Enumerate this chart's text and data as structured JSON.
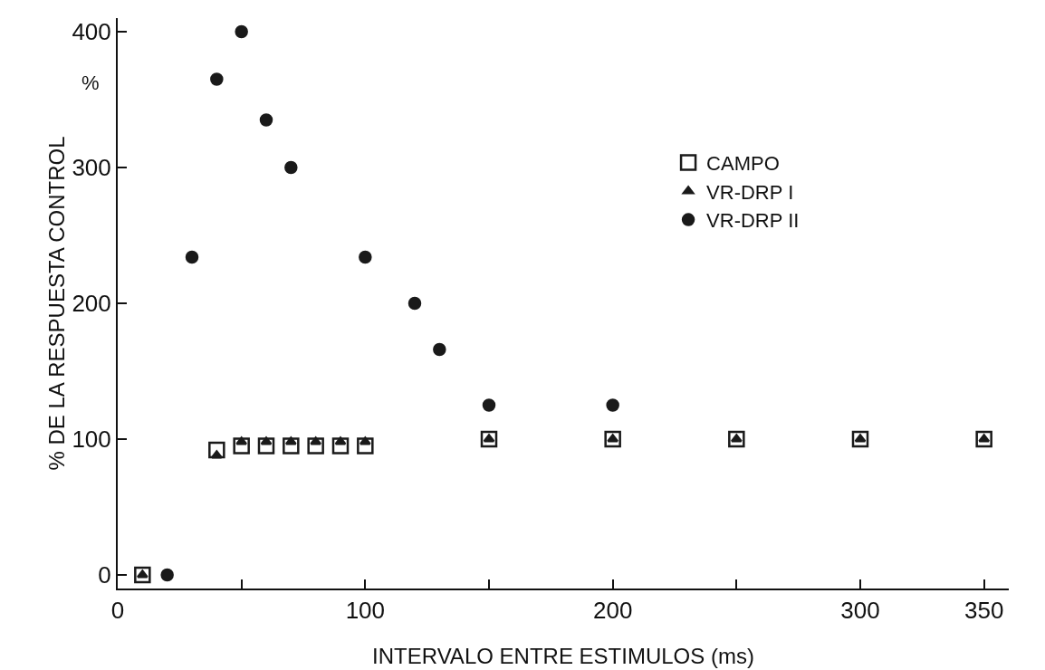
{
  "chart_data": {
    "type": "scatter",
    "xlabel": "INTERVALO ENTRE ESTIMULOS (ms)",
    "ylabel": "% DE LA RESPUESTA CONTROL",
    "annotations": [
      "%"
    ],
    "series": [
      {
        "name": "CAMPO",
        "color": "#1a1a1a",
        "marker": "square",
        "x": [
          10,
          40,
          50,
          60,
          70,
          80,
          90,
          100,
          150,
          200,
          250,
          300,
          350
        ],
        "values": [
          0,
          92,
          95,
          95,
          95,
          95,
          95,
          95,
          100,
          100,
          100,
          100,
          100
        ]
      },
      {
        "name": "VR-DRP I",
        "color": "#1a1a1a",
        "marker": "triangle",
        "x": [
          10,
          40,
          50,
          60,
          70,
          80,
          90,
          100,
          150,
          200,
          250,
          300,
          350
        ],
        "values": [
          0,
          88,
          98,
          98,
          98,
          98,
          98,
          98,
          100,
          100,
          100,
          100,
          100
        ]
      },
      {
        "name": "VR-DRP II",
        "color": "#1a1a1a",
        "marker": "circle",
        "x": [
          20,
          30,
          40,
          50,
          60,
          70,
          100,
          120,
          130,
          150,
          200
        ],
        "values": [
          0,
          234,
          365,
          400,
          335,
          300,
          234,
          200,
          166,
          125,
          125
        ]
      }
    ],
    "xlim": [
      0,
      360
    ],
    "xticks": [
      0,
      {
        "value": 50,
        "label": null
      },
      100,
      {
        "value": 150,
        "label": null
      },
      200,
      {
        "value": 250,
        "label": null
      },
      300,
      350
    ],
    "ylim": [
      -10,
      410
    ],
    "yticks": [
      0,
      100,
      200,
      300,
      400
    ],
    "grid": false,
    "legend": "top right"
  }
}
